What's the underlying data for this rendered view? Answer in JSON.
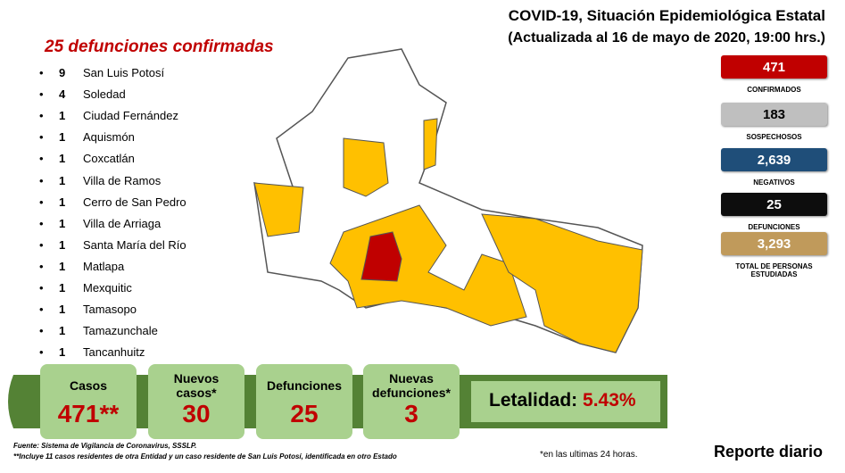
{
  "header": {
    "title": "COVID-19, Situación Epidemiológica Estatal",
    "subtitle": "(Actualizada al 16 de mayo de 2020, 19:00 hrs.)"
  },
  "deaths": {
    "title": "25 defunciones confirmadas",
    "items": [
      {
        "count": 9,
        "name": "San Luis Potosí"
      },
      {
        "count": 4,
        "name": "Soledad"
      },
      {
        "count": 1,
        "name": "Ciudad Fernández"
      },
      {
        "count": 1,
        "name": "Aquismón"
      },
      {
        "count": 1,
        "name": "Coxcatlán"
      },
      {
        "count": 1,
        "name": "Villa de Ramos"
      },
      {
        "count": 1,
        "name": "Cerro de San Pedro"
      },
      {
        "count": 1,
        "name": "Villa de Arriaga"
      },
      {
        "count": 1,
        "name": "Santa María del Río"
      },
      {
        "count": 1,
        "name": "Matlapa"
      },
      {
        "count": 1,
        "name": "Mexquitic"
      },
      {
        "count": 1,
        "name": "Tamasopo"
      },
      {
        "count": 1,
        "name": "Tamazunchale"
      },
      {
        "count": 1,
        "name": "Tancanhuitz"
      }
    ]
  },
  "stats": [
    {
      "value": "471",
      "label": "CONFIRMADOS",
      "color": "#c00000"
    },
    {
      "value": "183",
      "label": "SOSPECHOSOS",
      "color": "#bfbfbf"
    },
    {
      "value": "2,639",
      "label": "NEGATIVOS",
      "color": "#1f4e79"
    },
    {
      "value": "25",
      "label": "DEFUNCIONES",
      "color": "#0d0d0d"
    },
    {
      "value": "3,293",
      "label": "TOTAL DE PERSONAS ESTUDIADAS",
      "color": "#c09a5b"
    }
  ],
  "summary": [
    {
      "label": "Casos",
      "value": "471**"
    },
    {
      "label": "Nuevos casos*",
      "value": "30"
    },
    {
      "label": "Defunciones",
      "value": "25"
    },
    {
      "label": "Nuevas defunciones*",
      "value": "3"
    }
  ],
  "letalidad": {
    "label": "Letalidad:",
    "value": "5.43%"
  },
  "footer": {
    "source": "Fuente:  Sistema de Vigilancia de Coronavirus, SSSLP.",
    "note": "**Incluye 11 casos residentes de otra Entidad y un caso residente de San Luis Potosí, identificada en otro Estado",
    "note24": "*en las ultimas 24 horas.",
    "report": "Reporte diario"
  }
}
